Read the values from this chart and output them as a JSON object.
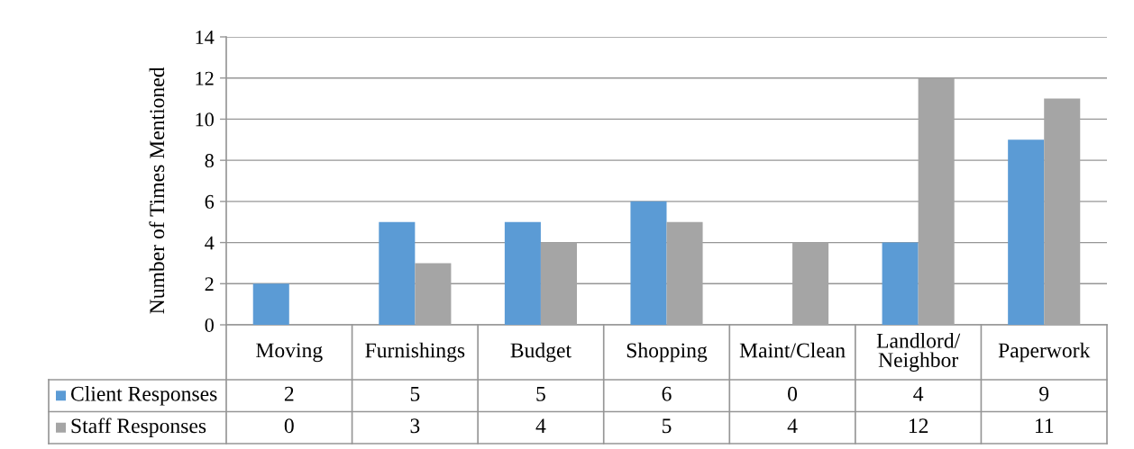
{
  "chart_data": {
    "type": "bar",
    "ylabel": "Number of Times Mentioned",
    "categories": [
      "Moving",
      "Furnishings",
      "Budget",
      "Shopping",
      "Maint/Clean",
      "Landlord/\nNeighbor",
      "Paperwork"
    ],
    "series": [
      {
        "name": "Client Responses",
        "color": "#5b9bd5",
        "values": [
          2,
          5,
          5,
          6,
          0,
          4,
          9
        ]
      },
      {
        "name": "Staff Responses",
        "color": "#a5a5a5",
        "values": [
          0,
          3,
          4,
          5,
          4,
          12,
          11
        ]
      }
    ],
    "ylim": [
      0,
      14
    ],
    "yticks": [
      0,
      2,
      4,
      6,
      8,
      10,
      12,
      14
    ],
    "grid": "y",
    "legend": "bottom",
    "data_labels": true
  }
}
